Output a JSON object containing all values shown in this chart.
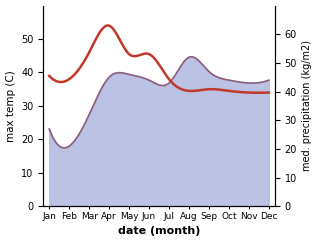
{
  "months": [
    "Jan",
    "Feb",
    "Mar",
    "Apr",
    "May",
    "Jun",
    "Jul",
    "Aug",
    "Sep",
    "Oct",
    "Nov",
    "Dec"
  ],
  "x": [
    0,
    1,
    2,
    3,
    4,
    5,
    6,
    7,
    8,
    9,
    10,
    11
  ],
  "temp": [
    39,
    38,
    46,
    54,
    45.5,
    45.5,
    38,
    34.5,
    35,
    34.5,
    34,
    34
  ],
  "precip": [
    27,
    21,
    32,
    45,
    46,
    44,
    43,
    52,
    47,
    44,
    43,
    44
  ],
  "temp_color": "#c0392b",
  "precip_fill_color": "#b0b8e0",
  "precip_line_color": "#8b5e7e",
  "xlabel": "date (month)",
  "ylabel_left": "max temp (C)",
  "ylabel_right": "med. precipitation (kg/m2)",
  "ylim_left": [
    0,
    60
  ],
  "ylim_right": [
    0,
    70
  ],
  "yticks_left": [
    0,
    10,
    20,
    30,
    40,
    50
  ],
  "yticks_right": [
    0,
    10,
    20,
    30,
    40,
    50,
    60
  ],
  "background_color": "#ffffff"
}
